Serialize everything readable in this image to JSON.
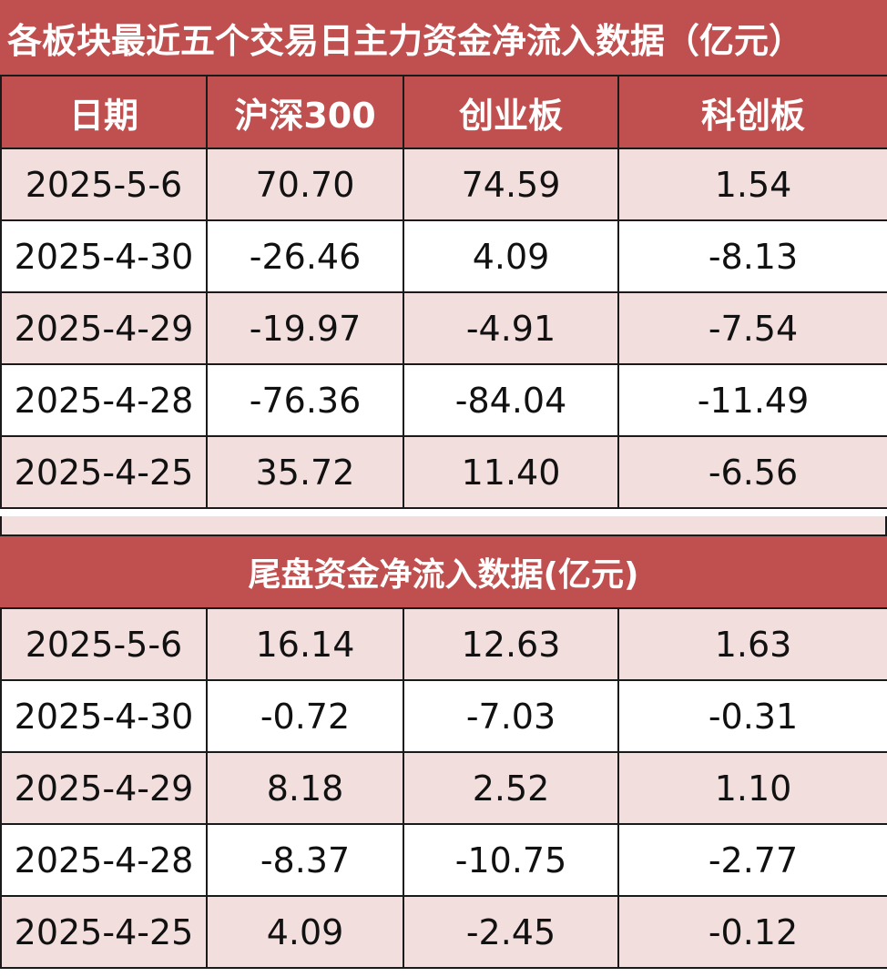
{
  "title": "各板块最近五个交易日主力资金净流入数据（亿元）",
  "headers": [
    "日期",
    "沪深300",
    "创业板",
    "科创板"
  ],
  "main_rows": [
    [
      "2025-5-6",
      "70.70",
      "74.59",
      "1.54"
    ],
    [
      "2025-4-30",
      "-26.46",
      "4.09",
      "-8.13"
    ],
    [
      "2025-4-29",
      "-19.97",
      "-4.91",
      "-7.54"
    ],
    [
      "2025-4-28",
      "-76.36",
      "-84.04",
      "-11.49"
    ],
    [
      "2025-4-25",
      "35.72",
      "11.40",
      "-6.56"
    ]
  ],
  "tail_title": "尾盘资金净流入数据(亿元)",
  "tail_rows": [
    [
      "2025-5-6",
      "16.14",
      "12.63",
      "1.63"
    ],
    [
      "2025-4-30",
      "-0.72",
      "-7.03",
      "-0.31"
    ],
    [
      "2025-4-29",
      "8.18",
      "2.52",
      "1.10"
    ],
    [
      "2025-4-28",
      "-8.37",
      "-10.75",
      "-2.77"
    ],
    [
      "2025-4-25",
      "4.09",
      "-2.45",
      "-0.12"
    ]
  ],
  "colors": {
    "header_bg": "#c0504f",
    "header_text": "#ffffff",
    "row_pink": "#f3dede",
    "row_white": "#ffffff"
  }
}
